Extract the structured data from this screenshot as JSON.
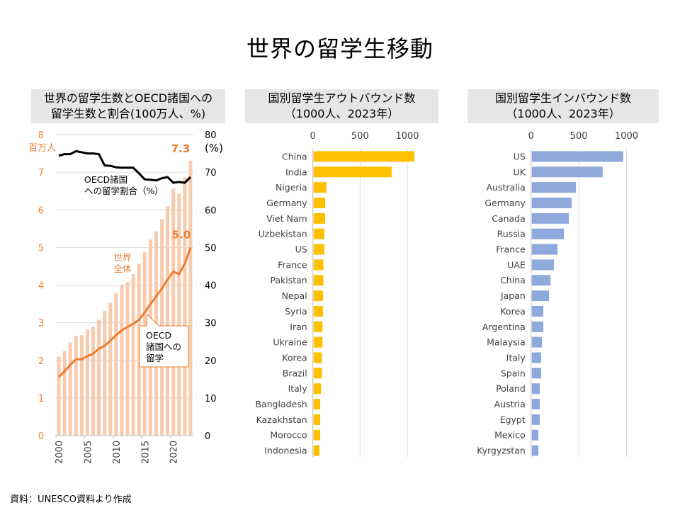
{
  "page": {
    "title": "世界の留学生移動",
    "footer": "資料：UNESCO資料より作成"
  },
  "colors": {
    "world_bars": "#F8CBAD",
    "oecd_line": "#ED7D31",
    "share_line": "#000000",
    "outbound_bars": "#FFC000",
    "inbound_bars": "#8EA9DB",
    "panel_title_bg": "#E7E6E6",
    "left_axis_text": "#ED7D31"
  },
  "panels": {
    "left_title_line1": "世界の留学生数とOECD諸国への",
    "left_title_line2": "留学生数と割合(100万人、%)",
    "mid_title_line1": "国別留学生アウトバウンド数",
    "mid_title_line2": "（1000人、2023年）",
    "right_title_line1": "国別留学生インバウンド数",
    "right_title_line2": "（1000人、2023年）"
  },
  "chart_data": [
    {
      "type": "bar",
      "title": "世界の留学生数とOECD諸国への留学生数と割合(100万人、%)",
      "x": [
        2000,
        2001,
        2002,
        2003,
        2004,
        2005,
        2006,
        2007,
        2008,
        2009,
        2010,
        2011,
        2012,
        2013,
        2014,
        2015,
        2016,
        2017,
        2018,
        2019,
        2020,
        2021,
        2022,
        2023
      ],
      "x_tick_labels": [
        "2000",
        "2005",
        "2010",
        "2015",
        "2020"
      ],
      "y_left": {
        "unit_label": "百万人",
        "ylim": [
          0,
          8
        ],
        "ticks": [
          "0",
          "1",
          "2",
          "3",
          "4",
          "5",
          "6",
          "7",
          "8"
        ]
      },
      "y_right": {
        "unit_label": "(%)",
        "ylim": [
          0,
          80
        ],
        "ticks": [
          "0",
          "10",
          "20",
          "30",
          "40",
          "50",
          "60",
          "70",
          "80"
        ]
      },
      "grid": true,
      "series": [
        {
          "name": "世界全体",
          "kind": "bar",
          "axis": "left",
          "values": [
            2.1,
            2.24,
            2.48,
            2.65,
            2.67,
            2.82,
            2.89,
            3.08,
            3.31,
            3.53,
            3.78,
            4.0,
            4.08,
            4.29,
            4.57,
            4.87,
            5.21,
            5.43,
            5.75,
            6.09,
            6.56,
            6.43,
            6.86,
            7.3
          ],
          "label_last": "7.3"
        },
        {
          "name": "OECD諸国への留学",
          "kind": "line",
          "axis": "left",
          "values": [
            1.56,
            1.71,
            1.88,
            2.03,
            2.03,
            2.11,
            2.18,
            2.31,
            2.39,
            2.52,
            2.67,
            2.8,
            2.89,
            2.97,
            3.08,
            3.27,
            3.5,
            3.7,
            3.91,
            4.15,
            4.36,
            4.29,
            4.57,
            5.0
          ],
          "label_last": "5.0"
        },
        {
          "name": "OECD諸国への留学割合（%）",
          "kind": "line",
          "axis": "right",
          "values": [
            74.4,
            74.8,
            74.8,
            75.6,
            75.3,
            75.0,
            75.0,
            74.8,
            71.8,
            71.7,
            71.3,
            71.2,
            71.2,
            71.2,
            69.7,
            68.1,
            68.0,
            67.8,
            68.4,
            68.7,
            67.2,
            67.4,
            67.2,
            68.7
          ]
        }
      ],
      "annotations": {
        "share_label_line1": "OECD諸国",
        "share_label_line2": "への留学割合（%）",
        "world_label_line1": "世界",
        "world_label_line2": "全体",
        "oecd_callout_line1": "OECD",
        "oecd_callout_line2": "諸国への",
        "oecd_callout_line3": "留学"
      }
    },
    {
      "type": "bar",
      "orientation": "horizontal",
      "title": "国別留学生アウトバウンド数（1000人、2023年）",
      "xlim": [
        0,
        1100
      ],
      "x_ticks": [
        "0",
        "500",
        "1000"
      ],
      "grid": true,
      "categories": [
        "China",
        "India",
        "Nigeria",
        "Germany",
        "Viet Nam",
        "Uzbekistan",
        "US",
        "France",
        "Pakistan",
        "Nepal",
        "Syria",
        "Iran",
        "Ukraine",
        "Korea",
        "Brazil",
        "Italy",
        "Bangladesh",
        "Kazakhstan",
        "Morocco",
        "Indonesia"
      ],
      "values": [
        1075,
        834,
        143,
        130,
        130,
        122,
        122,
        112,
        112,
        107,
        107,
        102,
        102,
        95,
        95,
        87,
        77,
        77,
        77,
        70
      ]
    },
    {
      "type": "bar",
      "orientation": "horizontal",
      "title": "国別留学生インバウンド数（1000人、2023年）",
      "xlim": [
        0,
        1100
      ],
      "x_ticks": [
        "0",
        "500",
        "1000"
      ],
      "grid": true,
      "categories": [
        "US",
        "UK",
        "Australia",
        "Germany",
        "Canada",
        "Russia",
        "France",
        "UAE",
        "China",
        "Japan",
        "Korea",
        "Argentina",
        "Malaysia",
        "Italy",
        "Spain",
        "Poland",
        "Austria",
        "Egypt",
        "Mexico",
        "Kyrgyzstan"
      ],
      "values": [
        965,
        750,
        470,
        425,
        396,
        344,
        277,
        240,
        203,
        188,
        128,
        128,
        114,
        106,
        106,
        91,
        91,
        91,
        76,
        76
      ]
    }
  ]
}
